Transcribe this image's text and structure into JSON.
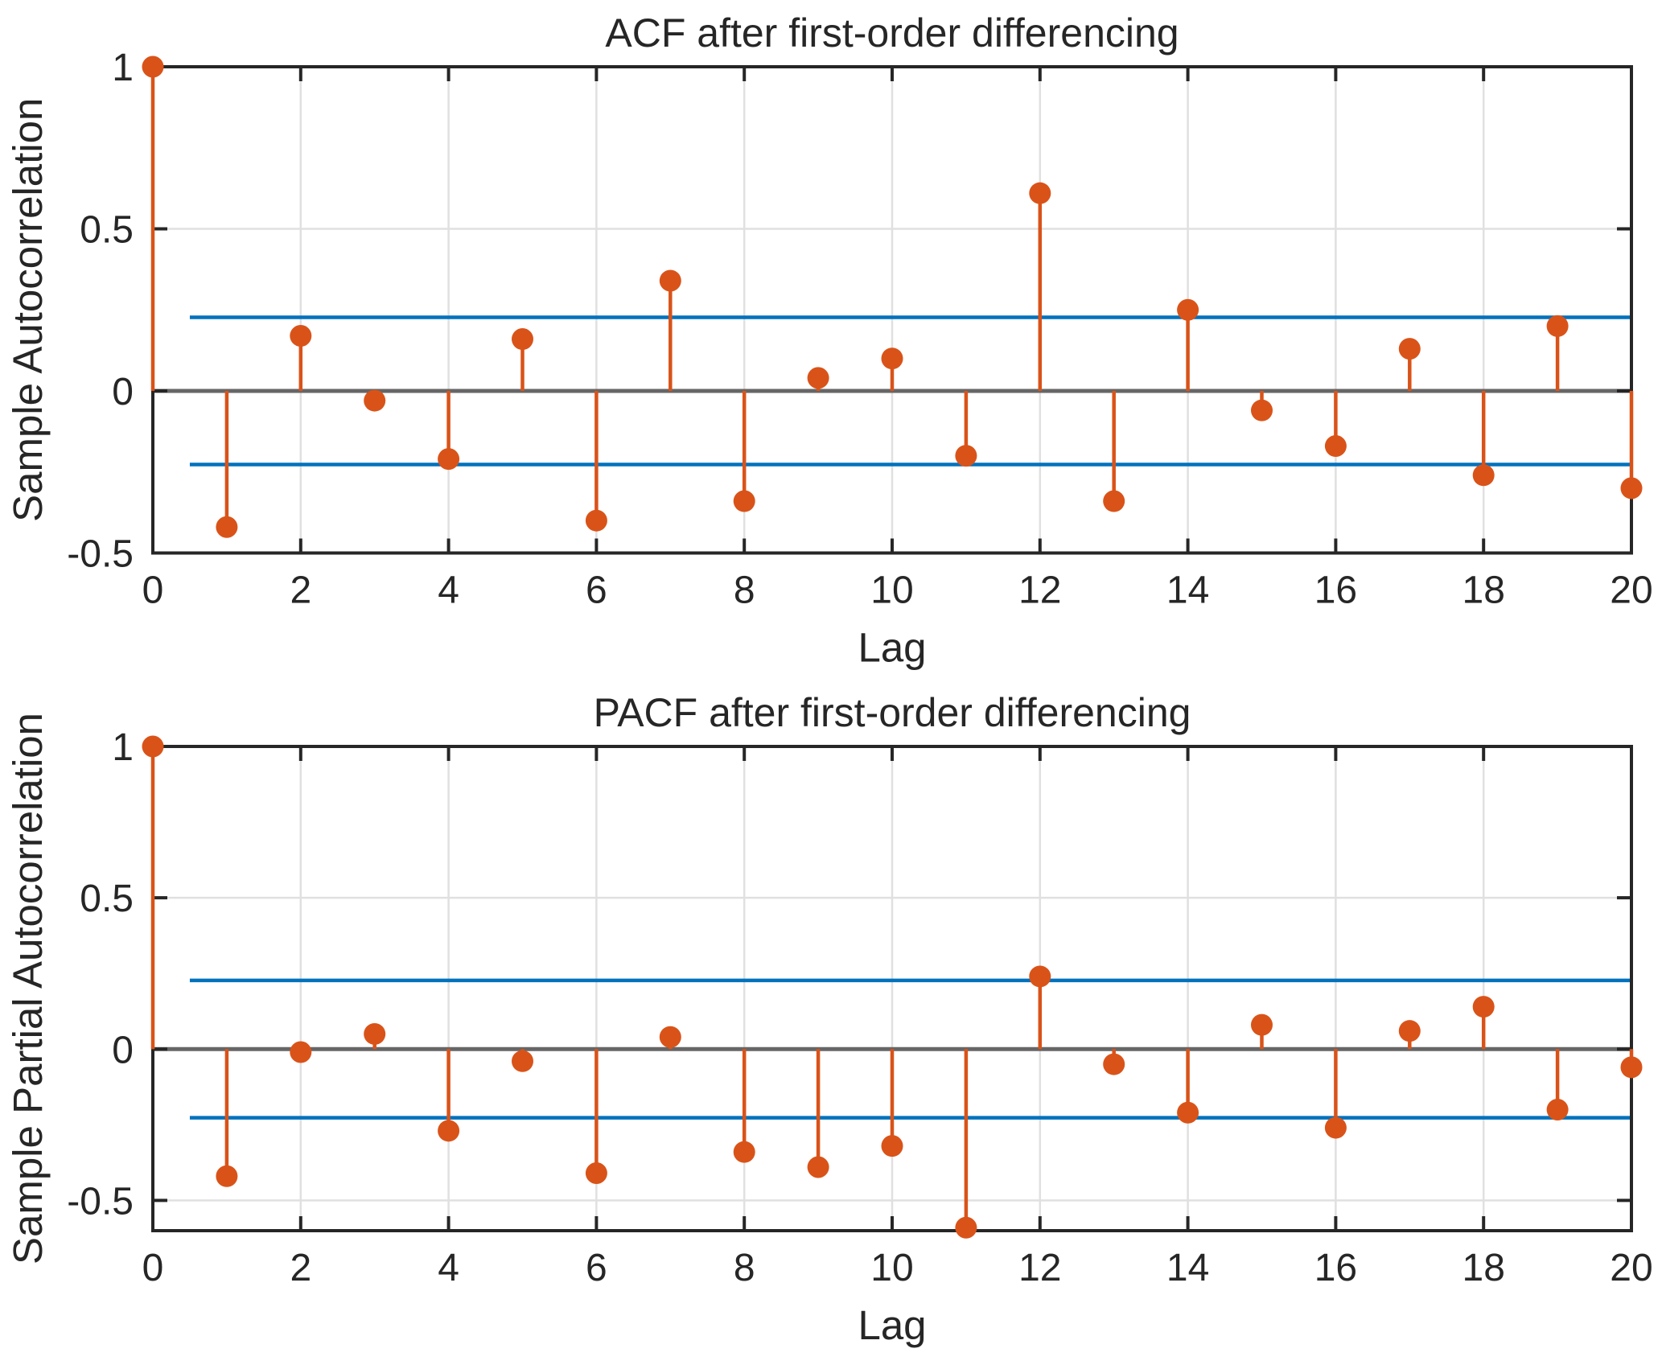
{
  "style": {
    "background": "#FFFFFF",
    "stem_color": "#D95319",
    "bound_color": "#0072BD",
    "zero_line_color": "#666666",
    "axis_color": "#262626",
    "grid_color": "#E0E0E0",
    "text_color": "#262626"
  },
  "chart_data": [
    {
      "type": "stem",
      "title": "ACF after first-order differencing",
      "xlabel": "Lag",
      "ylabel": "Sample Autocorrelation",
      "x": [
        0,
        1,
        2,
        3,
        4,
        5,
        6,
        7,
        8,
        9,
        10,
        11,
        12,
        13,
        14,
        15,
        16,
        17,
        18,
        19,
        20
      ],
      "values": [
        1.0,
        -0.42,
        0.17,
        -0.03,
        -0.21,
        0.16,
        -0.4,
        0.34,
        -0.34,
        0.04,
        0.1,
        -0.2,
        0.61,
        -0.34,
        0.25,
        -0.06,
        -0.17,
        0.13,
        -0.26,
        0.2,
        -0.3
      ],
      "confidence_bounds": {
        "level": 0.227,
        "x_start": 0.5,
        "x_end": 20
      },
      "xlim": [
        0,
        20
      ],
      "ylim": [
        -0.5,
        1
      ],
      "xticks": [
        0,
        2,
        4,
        6,
        8,
        10,
        12,
        14,
        16,
        18,
        20
      ],
      "xtick_labels": [
        "0",
        "2",
        "4",
        "6",
        "8",
        "10",
        "12",
        "14",
        "16",
        "18",
        "20"
      ],
      "yticks": [
        -0.5,
        0,
        0.5,
        1
      ],
      "ytick_labels": [
        "-0.5",
        "0",
        "0.5",
        "1"
      ],
      "grid": true,
      "legend": null
    },
    {
      "type": "stem",
      "title": "PACF after first-order differencing",
      "xlabel": "Lag",
      "ylabel": "Sample Partial Autocorrelation",
      "x": [
        0,
        1,
        2,
        3,
        4,
        5,
        6,
        7,
        8,
        9,
        10,
        11,
        12,
        13,
        14,
        15,
        16,
        17,
        18,
        19,
        20
      ],
      "values": [
        1.0,
        -0.42,
        -0.01,
        0.05,
        -0.27,
        -0.04,
        -0.41,
        0.04,
        -0.34,
        -0.39,
        -0.32,
        -0.59,
        0.24,
        -0.05,
        -0.21,
        0.08,
        -0.26,
        0.06,
        0.14,
        -0.2,
        -0.06
      ],
      "confidence_bounds": {
        "level": 0.227,
        "x_start": 0.5,
        "x_end": 20
      },
      "xlim": [
        0,
        20
      ],
      "ylim": [
        -0.6,
        1
      ],
      "xticks": [
        0,
        2,
        4,
        6,
        8,
        10,
        12,
        14,
        16,
        18,
        20
      ],
      "xtick_labels": [
        "0",
        "2",
        "4",
        "6",
        "8",
        "10",
        "12",
        "14",
        "16",
        "18",
        "20"
      ],
      "yticks": [
        -0.5,
        0,
        0.5,
        1
      ],
      "ytick_labels": [
        "-0.5",
        "0",
        "0.5",
        "1"
      ],
      "grid": true,
      "legend": null
    }
  ]
}
